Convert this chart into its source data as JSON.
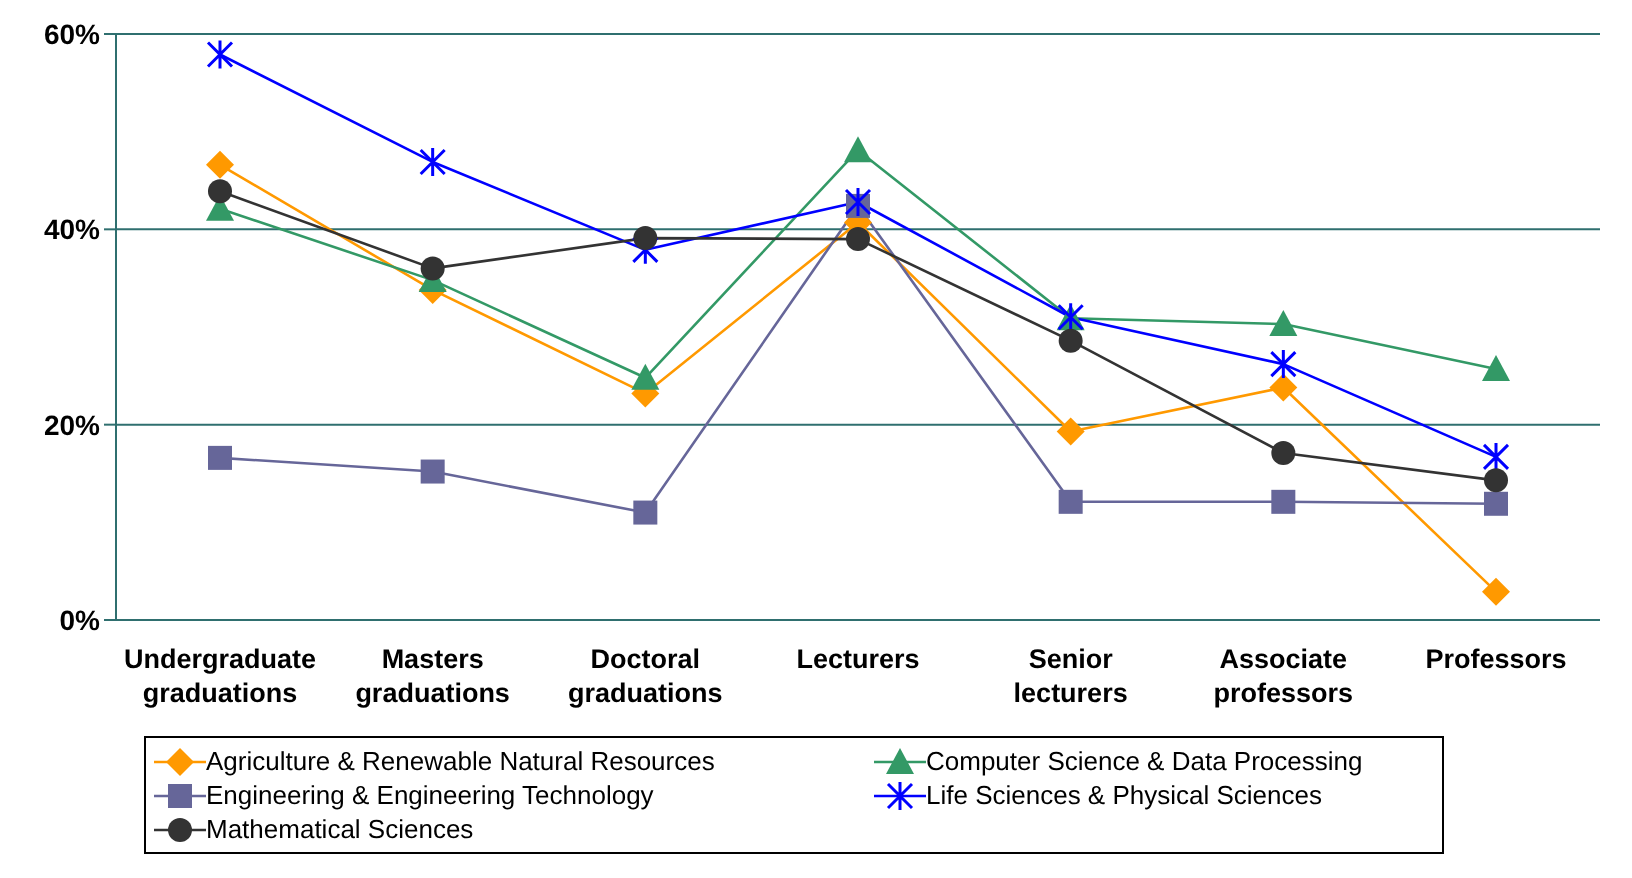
{
  "chart_data": {
    "type": "line",
    "categories": [
      "Undergraduate graduations",
      "Masters graduations",
      "Doctoral graduations",
      "Lecturers",
      "Senior lecturers",
      "Associate professors",
      "Professors"
    ],
    "series": [
      {
        "name": "Agriculture & Renewable Natural Resources",
        "color": "#ff9900",
        "marker": "diamond",
        "values": [
          46.6,
          33.8,
          23.2,
          40.7,
          19.3,
          23.8,
          2.9
        ]
      },
      {
        "name": "Computer Science & Data Processing",
        "color": "#339966",
        "marker": "triangle",
        "values": [
          42.1,
          34.8,
          24.8,
          48.1,
          30.9,
          30.3,
          25.7
        ]
      },
      {
        "name": "Engineering & Engineering Technology",
        "color": "#666699",
        "marker": "square",
        "values": [
          16.6,
          15.2,
          11.0,
          42.4,
          12.1,
          12.1,
          11.9
        ]
      },
      {
        "name": "Life Sciences & Physical Sciences",
        "color": "#0000ff",
        "marker": "cross",
        "values": [
          57.9,
          46.9,
          37.9,
          42.8,
          31.0,
          26.2,
          16.7
        ]
      },
      {
        "name": "Mathematical Sciences",
        "color": "#333333",
        "marker": "circle",
        "values": [
          43.9,
          36.0,
          39.1,
          39.0,
          28.6,
          17.1,
          14.3
        ]
      }
    ],
    "ylim": [
      0,
      60
    ],
    "yticks": [
      {
        "value": 0,
        "label": "0%"
      },
      {
        "value": 20,
        "label": "20%"
      },
      {
        "value": 40,
        "label": "40%"
      },
      {
        "value": 60,
        "label": "60%"
      }
    ],
    "grid": "y",
    "legend": "bottom"
  }
}
